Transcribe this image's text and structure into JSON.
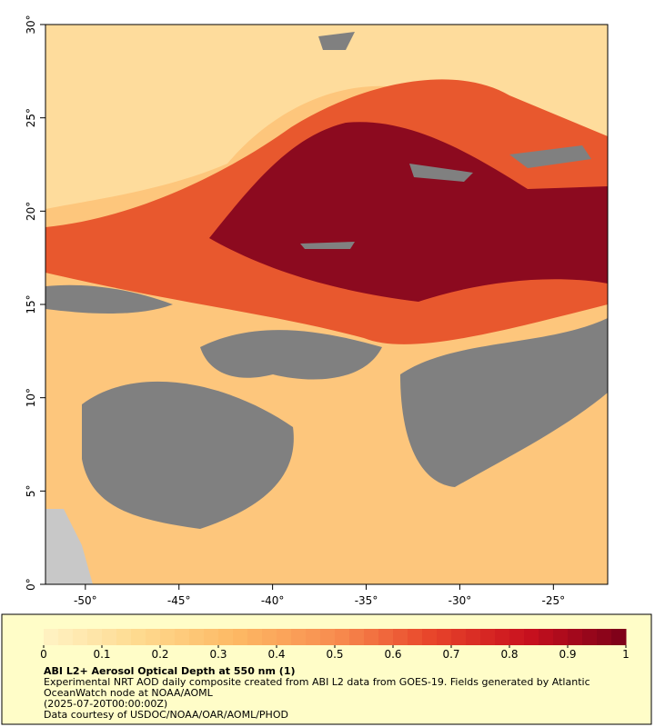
{
  "map": {
    "xlim": [
      -52.13,
      -22.1
    ],
    "ylim": [
      0,
      30
    ],
    "xticks": [
      {
        "value": -50,
        "label": "-50°"
      },
      {
        "value": -45,
        "label": "-45°"
      },
      {
        "value": -40,
        "label": "-40°"
      },
      {
        "value": -35,
        "label": "-35°"
      },
      {
        "value": -30,
        "label": "-30°"
      },
      {
        "value": -25,
        "label": "-25°"
      }
    ],
    "yticks": [
      {
        "value": 0,
        "label": "0°"
      },
      {
        "value": 5,
        "label": "5°"
      },
      {
        "value": 10,
        "label": "10°"
      },
      {
        "value": 15,
        "label": "15°"
      },
      {
        "value": 20,
        "label": "20°"
      },
      {
        "value": 25,
        "label": "25°"
      },
      {
        "value": 30,
        "label": "30°"
      }
    ],
    "colorbar": {
      "range": [
        0,
        1
      ],
      "ticks": [
        0,
        0.1,
        0.2,
        0.3,
        0.4,
        0.5,
        0.6,
        0.7,
        0.8,
        0.9,
        1
      ],
      "colors": [
        "#fff3c4",
        "#fed98e",
        "#fdb863",
        "#f88d4f",
        "#e8442a",
        "#c8101e",
        "#7a0019"
      ]
    },
    "title": "ABI L2+ Aerosol Optical Depth at 550 nm (1)",
    "lines": [
      "Experimental NRT AOD daily composite created from ABI L2 data from GOES-19. Fields generated by Atlantic",
      "OceanWatch node at NOAA/AOML",
      "(2025-07-20T00:00:00Z)",
      "Data courtesy of USDOC/NOAA/OAR/AOML/PHOD"
    ]
  }
}
